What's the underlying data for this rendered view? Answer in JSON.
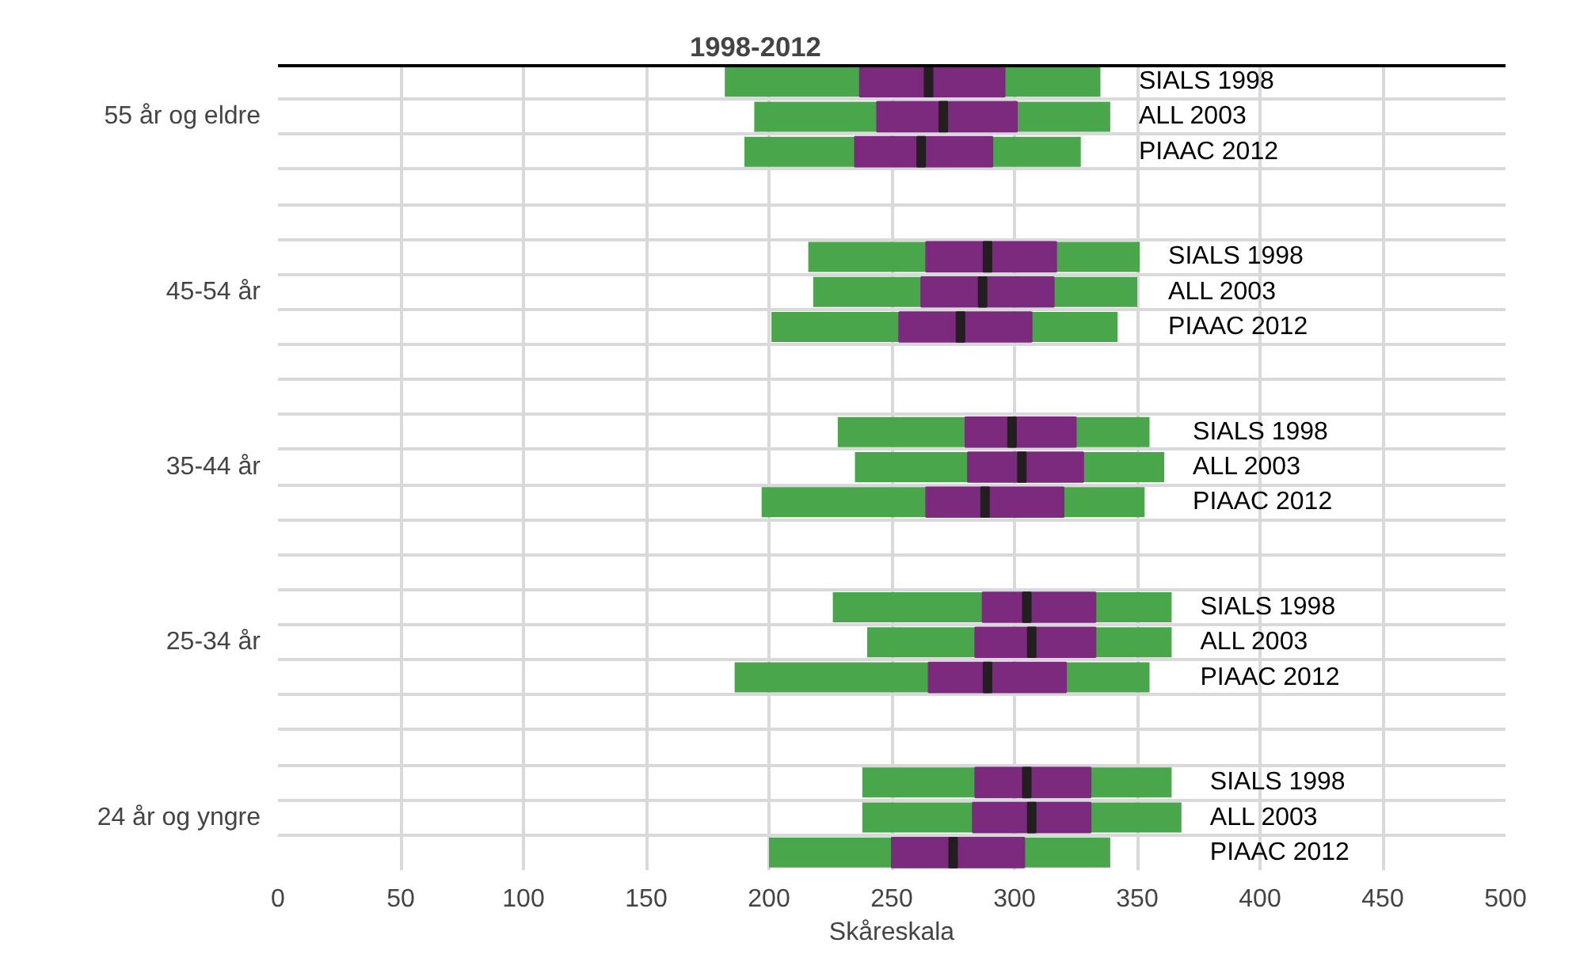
{
  "chart_data": {
    "type": "box",
    "orientation": "horizontal",
    "title": "1998-2012",
    "xlabel": "Skåreskala",
    "categories": [
      "55 år og eldre",
      "45-54 år",
      "35-44 år",
      "25-34 år",
      "24 år og yngre"
    ],
    "colors": [
      "#4aa64a",
      "#231f20"
    ],
    "xlim": [
      0,
      500
    ],
    "xticks": [
      0,
      50,
      100,
      150,
      200,
      250,
      300,
      350,
      400,
      450,
      500
    ],
    "grid": true,
    "legend": "right",
    "series": [
      {
        "name": "SIALS 1998",
        "color": "#7b2a7e",
        "boxes": [
          {
            "low": 182,
            "q1": 237,
            "median": 265,
            "q3": 296,
            "high": 335
          },
          {
            "low": 216,
            "q1": 264,
            "median": 289,
            "q3": 317,
            "high": 351
          },
          {
            "low": 228,
            "q1": 280,
            "median": 299,
            "q3": 325,
            "high": 355
          },
          {
            "low": 226,
            "q1": 287,
            "median": 305,
            "q3": 333,
            "high": 364
          },
          {
            "low": 238,
            "q1": 284,
            "median": 305,
            "q3": 331,
            "high": 364
          }
        ]
      },
      {
        "name": "ALL 2003",
        "color": "#7b2a7e",
        "boxes": [
          {
            "low": 194,
            "q1": 244,
            "median": 271,
            "q3": 301,
            "high": 339
          },
          {
            "low": 218,
            "q1": 262,
            "median": 287,
            "q3": 316,
            "high": 350
          },
          {
            "low": 235,
            "q1": 281,
            "median": 303,
            "q3": 328,
            "high": 361
          },
          {
            "low": 240,
            "q1": 284,
            "median": 307,
            "q3": 333,
            "high": 364
          },
          {
            "low": 238,
            "q1": 283,
            "median": 307,
            "q3": 331,
            "high": 368
          }
        ]
      },
      {
        "name": "PIAAC 2012",
        "color": "#7b2a7e",
        "boxes": [
          {
            "low": 190,
            "q1": 235,
            "median": 262,
            "q3": 291,
            "high": 327
          },
          {
            "low": 201,
            "q1": 253,
            "median": 278,
            "q3": 307,
            "high": 342
          },
          {
            "low": 197,
            "q1": 264,
            "median": 288,
            "q3": 320,
            "high": 353
          },
          {
            "low": 186,
            "q1": 265,
            "median": 289,
            "q3": 321,
            "high": 355
          },
          {
            "low": 200,
            "q1": 250,
            "median": 275,
            "q3": 304,
            "high": 339
          }
        ]
      }
    ]
  }
}
